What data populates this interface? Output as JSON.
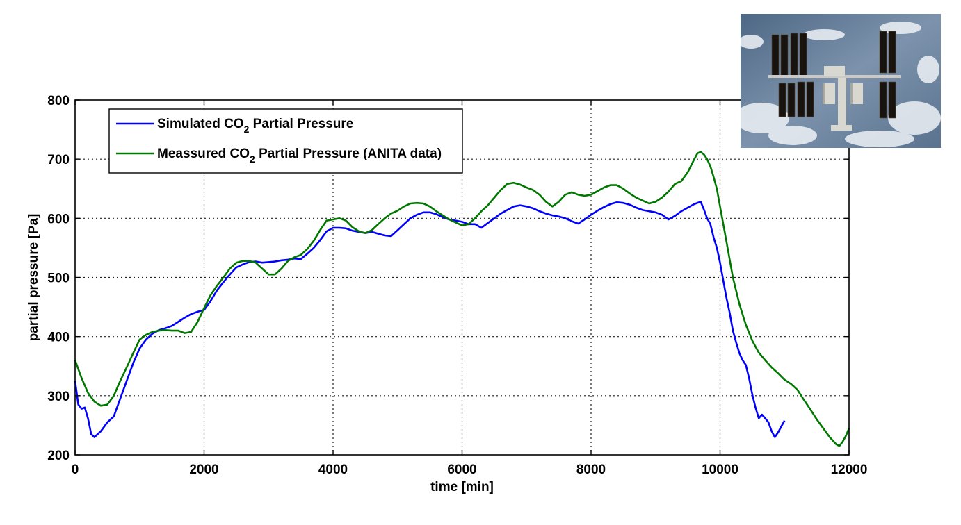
{
  "chart_data": {
    "type": "line",
    "title": "",
    "xlabel": "time [min]",
    "ylabel": "partial pressure [Pa]",
    "xlim": [
      0,
      12000
    ],
    "ylim": [
      200,
      800
    ],
    "xticks": [
      0,
      2000,
      4000,
      6000,
      8000,
      10000,
      12000
    ],
    "yticks": [
      200,
      300,
      400,
      500,
      600,
      700,
      800
    ],
    "grid": true,
    "legend_position": "top-left",
    "series": [
      {
        "name_parts": [
          "Simulated CO",
          "2",
          " Partial Pressure"
        ],
        "color": "#0000ff",
        "x": [
          0,
          50,
          100,
          150,
          200,
          250,
          300,
          350,
          400,
          500,
          600,
          700,
          800,
          900,
          1000,
          1100,
          1200,
          1300,
          1400,
          1500,
          1600,
          1700,
          1800,
          1900,
          2000,
          2100,
          2200,
          2300,
          2400,
          2500,
          2600,
          2700,
          2800,
          2900,
          3000,
          3100,
          3200,
          3300,
          3400,
          3500,
          3600,
          3700,
          3800,
          3900,
          4000,
          4100,
          4200,
          4300,
          4400,
          4500,
          4600,
          4700,
          4800,
          4900,
          5000,
          5100,
          5200,
          5300,
          5400,
          5500,
          5600,
          5700,
          5800,
          5900,
          6000,
          6100,
          6200,
          6300,
          6400,
          6500,
          6600,
          6700,
          6800,
          6900,
          7000,
          7100,
          7200,
          7300,
          7400,
          7500,
          7600,
          7700,
          7800,
          7900,
          8000,
          8100,
          8200,
          8300,
          8400,
          8500,
          8600,
          8700,
          8800,
          8900,
          9000,
          9100,
          9200,
          9300,
          9400,
          9500,
          9600,
          9700,
          9750,
          9800,
          9850,
          9900,
          9950,
          10000,
          10050,
          10100,
          10150,
          10200,
          10250,
          10300,
          10350,
          10400,
          10450,
          10500,
          10550,
          10600,
          10650,
          10700,
          10750,
          10800,
          10850,
          10900,
          10950,
          11000
        ],
        "y": [
          325,
          285,
          278,
          280,
          262,
          235,
          230,
          235,
          240,
          255,
          265,
          295,
          325,
          355,
          380,
          395,
          405,
          411,
          414,
          418,
          425,
          432,
          438,
          442,
          445,
          460,
          478,
          492,
          505,
          517,
          522,
          526,
          527,
          525,
          526,
          527,
          529,
          530,
          532,
          531,
          540,
          550,
          563,
          578,
          584,
          584,
          583,
          579,
          577,
          575,
          577,
          574,
          571,
          570,
          580,
          590,
          600,
          606,
          610,
          610,
          607,
          602,
          598,
          596,
          594,
          590,
          590,
          584,
          592,
          600,
          608,
          614,
          620,
          622,
          620,
          617,
          612,
          608,
          605,
          603,
          600,
          595,
          591,
          598,
          606,
          613,
          619,
          624,
          627,
          626,
          623,
          618,
          614,
          612,
          610,
          606,
          598,
          604,
          612,
          618,
          624,
          628,
          615,
          600,
          590,
          568,
          550,
          525,
          495,
          465,
          440,
          410,
          390,
          372,
          360,
          352,
          330,
          302,
          280,
          262,
          268,
          262,
          255,
          240,
          230,
          238,
          248,
          258
        ]
      },
      {
        "name_parts": [
          "Meassured CO",
          "2",
          " Partial Pressure (ANITA data)"
        ],
        "color": "#007800",
        "x": [
          0,
          100,
          200,
          300,
          400,
          500,
          600,
          700,
          800,
          900,
          1000,
          1100,
          1200,
          1300,
          1400,
          1500,
          1600,
          1700,
          1800,
          1900,
          2000,
          2100,
          2200,
          2300,
          2400,
          2500,
          2600,
          2700,
          2800,
          2900,
          3000,
          3100,
          3200,
          3300,
          3400,
          3500,
          3600,
          3700,
          3800,
          3900,
          4000,
          4100,
          4200,
          4300,
          4400,
          4500,
          4600,
          4700,
          4800,
          4900,
          5000,
          5100,
          5200,
          5300,
          5400,
          5500,
          5600,
          5700,
          5800,
          5900,
          6000,
          6100,
          6200,
          6300,
          6400,
          6500,
          6600,
          6700,
          6800,
          6900,
          7000,
          7100,
          7200,
          7300,
          7400,
          7500,
          7600,
          7700,
          7800,
          7900,
          8000,
          8100,
          8200,
          8300,
          8400,
          8500,
          8600,
          8700,
          8800,
          8900,
          9000,
          9100,
          9200,
          9300,
          9400,
          9500,
          9600,
          9650,
          9700,
          9750,
          9800,
          9850,
          9900,
          9950,
          10000,
          10100,
          10200,
          10300,
          10400,
          10500,
          10600,
          10700,
          10800,
          10900,
          11000,
          11100,
          11200,
          11300,
          11400,
          11500,
          11600,
          11700,
          11800,
          11850,
          11900,
          11950,
          12000
        ],
        "y": [
          360,
          330,
          305,
          290,
          283,
          285,
          300,
          325,
          348,
          372,
          395,
          403,
          408,
          410,
          411,
          410,
          410,
          406,
          408,
          425,
          448,
          470,
          486,
          500,
          515,
          525,
          528,
          528,
          525,
          515,
          505,
          505,
          515,
          528,
          534,
          538,
          548,
          562,
          580,
          596,
          598,
          600,
          596,
          585,
          578,
          575,
          580,
          590,
          600,
          608,
          613,
          620,
          625,
          626,
          625,
          620,
          612,
          605,
          598,
          593,
          588,
          590,
          600,
          612,
          622,
          635,
          648,
          658,
          660,
          657,
          652,
          648,
          640,
          628,
          620,
          628,
          640,
          644,
          640,
          638,
          640,
          646,
          652,
          656,
          656,
          650,
          642,
          635,
          630,
          625,
          628,
          635,
          645,
          658,
          663,
          678,
          700,
          710,
          712,
          708,
          700,
          688,
          670,
          650,
          620,
          560,
          500,
          455,
          420,
          393,
          373,
          360,
          348,
          338,
          327,
          320,
          310,
          293,
          277,
          260,
          245,
          230,
          218,
          215,
          222,
          232,
          245
        ]
      }
    ]
  },
  "photo": {
    "subject": "International Space Station over Earth clouds",
    "sky_color": "#5f7894",
    "cloud_color": "#e9eef3",
    "panel_color": "#1a1510"
  }
}
